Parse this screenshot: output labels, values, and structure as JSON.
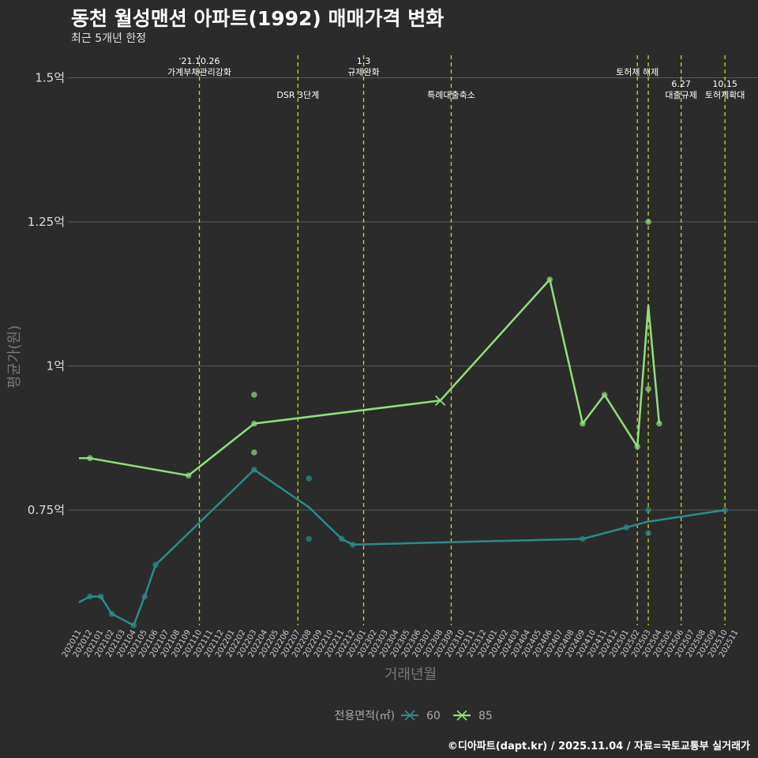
{
  "title": "동천 월성맨션 아파트(1992) 매매가격 변화",
  "subtitle": "최근 5개년 한정",
  "caption": "©디아파트(dapt.kr) / 2025.11.04 / 자료=국토교통부 실거래가",
  "colors": {
    "background": "#2b2b2b",
    "grid": "#5a5a5a",
    "event_line": "#d4d21e",
    "series_60": "#2a8c8c",
    "series_85": "#90e07a"
  },
  "chart_data": {
    "type": "line",
    "title": "동천 월성맨션 아파트(1992) 매매가격 변화",
    "xlabel": "거래년월",
    "ylabel": "평균가(원)",
    "ylim": [
      0.55,
      1.55
    ],
    "yticks": [
      {
        "value": 0.75,
        "label": "0.75억"
      },
      {
        "value": 1.0,
        "label": "1억"
      },
      {
        "value": 1.25,
        "label": "1.25억"
      },
      {
        "value": 1.5,
        "label": "1.5억"
      }
    ],
    "x_categories": [
      "202011",
      "202012",
      "202101",
      "202102",
      "202103",
      "202104",
      "202105",
      "202106",
      "202107",
      "202108",
      "202109",
      "202110",
      "202111",
      "202112",
      "202201",
      "202202",
      "202203",
      "202204",
      "202205",
      "202206",
      "202207",
      "202208",
      "202209",
      "202210",
      "202211",
      "202212",
      "202301",
      "202302",
      "202303",
      "202304",
      "202305",
      "202306",
      "202307",
      "202308",
      "202309",
      "202310",
      "202311",
      "202312",
      "202401",
      "202402",
      "202403",
      "202404",
      "202405",
      "202406",
      "202407",
      "202408",
      "202409",
      "202410",
      "202411",
      "202412",
      "202501",
      "202502",
      "202503",
      "202504",
      "202505",
      "202506",
      "202507",
      "202508",
      "202509",
      "202510",
      "202511"
    ],
    "legend": {
      "title": "전용면적(㎡)",
      "position": "bottom"
    },
    "series": [
      {
        "name": "60",
        "line": [
          {
            "x": 0,
            "y": 0.59
          },
          {
            "x": 1,
            "y": 0.6
          },
          {
            "x": 2,
            "y": 0.6
          },
          {
            "x": 3,
            "y": 0.57
          },
          {
            "x": 5,
            "y": 0.55
          },
          {
            "x": 6,
            "y": 0.6
          },
          {
            "x": 7,
            "y": 0.655
          },
          {
            "x": 16,
            "y": 0.82
          },
          {
            "x": 21,
            "y": 0.755
          },
          {
            "x": 24,
            "y": 0.7
          },
          {
            "x": 25,
            "y": 0.69
          },
          {
            "x": 46,
            "y": 0.7
          },
          {
            "x": 50,
            "y": 0.72
          },
          {
            "x": 52,
            "y": 0.73
          },
          {
            "x": 59,
            "y": 0.75
          }
        ],
        "points": [
          {
            "x": 1,
            "y": 0.6
          },
          {
            "x": 2,
            "y": 0.6
          },
          {
            "x": 3,
            "y": 0.57
          },
          {
            "x": 5,
            "y": 0.55
          },
          {
            "x": 6,
            "y": 0.6
          },
          {
            "x": 7,
            "y": 0.655
          },
          {
            "x": 16,
            "y": 0.82
          },
          {
            "x": 21,
            "y": 0.805
          },
          {
            "x": 21,
            "y": 0.7
          },
          {
            "x": 24,
            "y": 0.7
          },
          {
            "x": 25,
            "y": 0.69
          },
          {
            "x": 46,
            "y": 0.7
          },
          {
            "x": 50,
            "y": 0.72
          },
          {
            "x": 52,
            "y": 0.75
          },
          {
            "x": 52,
            "y": 0.71
          },
          {
            "x": 59,
            "y": 0.75
          }
        ]
      },
      {
        "name": "85",
        "line": [
          {
            "x": 0,
            "y": 0.84
          },
          {
            "x": 1,
            "y": 0.84
          },
          {
            "x": 10,
            "y": 0.81
          },
          {
            "x": 16,
            "y": 0.9
          },
          {
            "x": 33,
            "y": 0.94
          },
          {
            "x": 43,
            "y": 1.15
          },
          {
            "x": 46,
            "y": 0.9
          },
          {
            "x": 48,
            "y": 0.95
          },
          {
            "x": 51,
            "y": 0.86
          },
          {
            "x": 52,
            "y": 1.105
          },
          {
            "x": 53,
            "y": 0.9
          }
        ],
        "points": [
          {
            "x": 1,
            "y": 0.84
          },
          {
            "x": 10,
            "y": 0.81
          },
          {
            "x": 16,
            "y": 0.95
          },
          {
            "x": 16,
            "y": 0.9
          },
          {
            "x": 16,
            "y": 0.85
          },
          {
            "x": 43,
            "y": 1.15
          },
          {
            "x": 46,
            "y": 0.9
          },
          {
            "x": 48,
            "y": 0.95
          },
          {
            "x": 51,
            "y": 0.86
          },
          {
            "x": 52,
            "y": 1.25
          },
          {
            "x": 52,
            "y": 0.96
          },
          {
            "x": 53,
            "y": 0.9
          }
        ],
        "crosses": [
          {
            "x": 33,
            "y": 0.94
          }
        ]
      }
    ],
    "events": [
      {
        "x": 11,
        "lines": [
          "'21.10.26",
          "가계부채관리강화"
        ],
        "level": 0
      },
      {
        "x": 20,
        "lines": [
          "DSR 3단계"
        ],
        "level": 1
      },
      {
        "x": 26,
        "lines": [
          "1.3",
          "규제완화"
        ],
        "level": 0
      },
      {
        "x": 34,
        "lines": [
          "특례대출축소"
        ],
        "level": 1
      },
      {
        "x": 51,
        "lines": [
          "토허제 해제"
        ],
        "level": 0
      },
      {
        "x": 52,
        "lines": [],
        "level": 0
      },
      {
        "x": 55,
        "lines": [
          "6.27",
          "대출규제"
        ],
        "level": 1
      },
      {
        "x": 59,
        "lines": [
          "10.15",
          "토허제확대"
        ],
        "level": 1
      }
    ]
  }
}
